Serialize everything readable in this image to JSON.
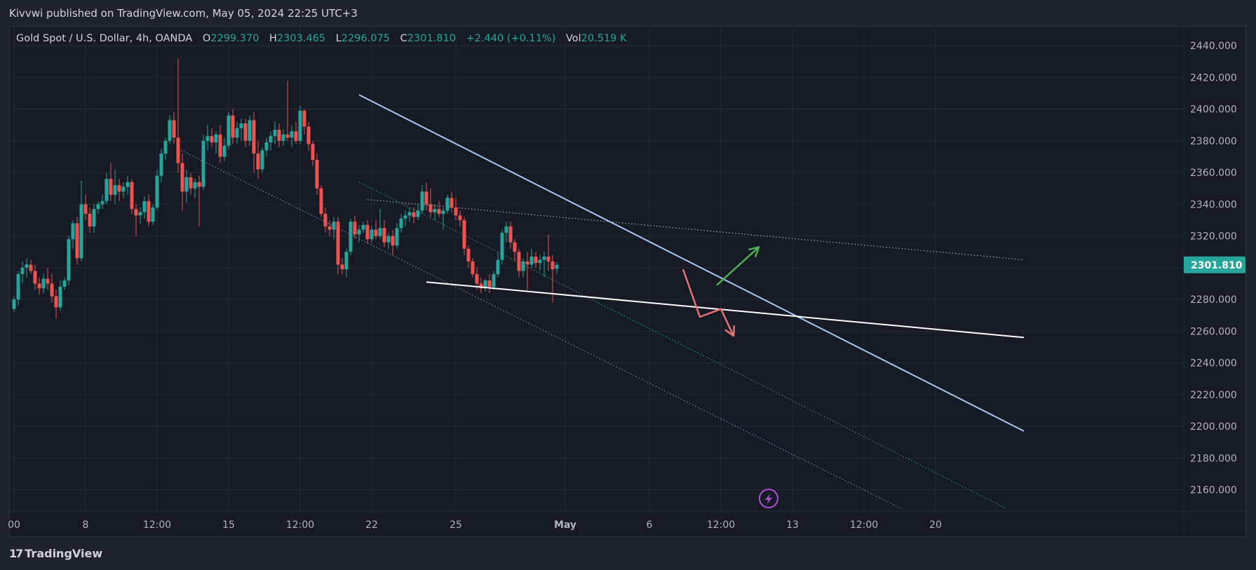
{
  "publisher_line": "Kivvwi published on TradingView.com, May 05, 2024 22:25 UTC+3",
  "legend": {
    "symbol": "Gold Spot / U.S. Dollar, 4h, OANDA",
    "o_label": "O",
    "o_value": "2299.370",
    "h_label": "H",
    "h_value": "2303.465",
    "l_label": "L",
    "l_value": "2296.075",
    "c_label": "C",
    "c_value": "2301.810",
    "change": "+2.440 (+0.11%)",
    "vol_label": "Vol",
    "vol_value": "20.519 K"
  },
  "footer": {
    "logo_mark": "17",
    "brand": "TradingView"
  },
  "colors": {
    "up": "#26a69a",
    "down": "#ef5350",
    "trend": "#a7c7f2",
    "price_tag": "#26a69a"
  },
  "chart_data": {
    "type": "candlestick",
    "symbol": "XAUUSD",
    "timeframe": "4h",
    "ylim": [
      2147,
      2452
    ],
    "y_ticks": [
      2160,
      2180,
      2200,
      2220,
      2240,
      2260,
      2280,
      2300,
      2320,
      2340,
      2360,
      2380,
      2400,
      2420,
      2440
    ],
    "y_tick_labels": [
      "2160.000",
      "2180.000",
      "2200.000",
      "2220.000",
      "2240.000",
      "2260.000",
      "2280.000",
      "2300.000",
      "2320.000",
      "2340.000",
      "2360.000",
      "2380.000",
      "2400.000",
      "2420.000",
      "2440.000"
    ],
    "x_tick_labels": [
      {
        "bar": 0,
        "label": "00"
      },
      {
        "bar": 17,
        "label": "8"
      },
      {
        "bar": 34,
        "label": "12:00"
      },
      {
        "bar": 51,
        "label": "15"
      },
      {
        "bar": 68,
        "label": "12:00"
      },
      {
        "bar": 85,
        "label": "22"
      },
      {
        "bar": 105,
        "label": "25"
      },
      {
        "bar": 131,
        "label": "May"
      },
      {
        "bar": 151,
        "label": "6"
      },
      {
        "bar": 168,
        "label": "12:00"
      },
      {
        "bar": 185,
        "label": "13"
      },
      {
        "bar": 202,
        "label": "12:00"
      },
      {
        "bar": 219,
        "label": "20"
      }
    ],
    "last_price": 2301.81,
    "last_price_label": "2301.810",
    "candles": [
      {
        "o": 2274,
        "h": 2282,
        "l": 2272,
        "c": 2280
      },
      {
        "o": 2280,
        "h": 2298,
        "l": 2276,
        "c": 2296
      },
      {
        "o": 2296,
        "h": 2304,
        "l": 2290,
        "c": 2300
      },
      {
        "o": 2300,
        "h": 2306,
        "l": 2294,
        "c": 2302
      },
      {
        "o": 2302,
        "h": 2305,
        "l": 2296,
        "c": 2298
      },
      {
        "o": 2298,
        "h": 2302,
        "l": 2286,
        "c": 2290
      },
      {
        "o": 2290,
        "h": 2294,
        "l": 2283,
        "c": 2287
      },
      {
        "o": 2287,
        "h": 2296,
        "l": 2284,
        "c": 2293
      },
      {
        "o": 2293,
        "h": 2300,
        "l": 2286,
        "c": 2290
      },
      {
        "o": 2290,
        "h": 2296,
        "l": 2278,
        "c": 2282
      },
      {
        "o": 2282,
        "h": 2286,
        "l": 2268,
        "c": 2275
      },
      {
        "o": 2275,
        "h": 2292,
        "l": 2273,
        "c": 2288
      },
      {
        "o": 2288,
        "h": 2294,
        "l": 2286,
        "c": 2292
      },
      {
        "o": 2292,
        "h": 2320,
        "l": 2289,
        "c": 2318
      },
      {
        "o": 2318,
        "h": 2330,
        "l": 2312,
        "c": 2328
      },
      {
        "o": 2328,
        "h": 2332,
        "l": 2302,
        "c": 2306
      },
      {
        "o": 2306,
        "h": 2355,
        "l": 2304,
        "c": 2340
      },
      {
        "o": 2340,
        "h": 2346,
        "l": 2330,
        "c": 2334
      },
      {
        "o": 2334,
        "h": 2338,
        "l": 2322,
        "c": 2326
      },
      {
        "o": 2326,
        "h": 2340,
        "l": 2322,
        "c": 2337
      },
      {
        "o": 2337,
        "h": 2342,
        "l": 2334,
        "c": 2340
      },
      {
        "o": 2340,
        "h": 2346,
        "l": 2337,
        "c": 2342
      },
      {
        "o": 2342,
        "h": 2360,
        "l": 2340,
        "c": 2356
      },
      {
        "o": 2356,
        "h": 2366,
        "l": 2342,
        "c": 2346
      },
      {
        "o": 2346,
        "h": 2362,
        "l": 2340,
        "c": 2352
      },
      {
        "o": 2352,
        "h": 2356,
        "l": 2342,
        "c": 2348
      },
      {
        "o": 2348,
        "h": 2354,
        "l": 2344,
        "c": 2351
      },
      {
        "o": 2351,
        "h": 2358,
        "l": 2346,
        "c": 2354
      },
      {
        "o": 2354,
        "h": 2356,
        "l": 2334,
        "c": 2337
      },
      {
        "o": 2337,
        "h": 2340,
        "l": 2320,
        "c": 2333
      },
      {
        "o": 2333,
        "h": 2338,
        "l": 2328,
        "c": 2335
      },
      {
        "o": 2335,
        "h": 2345,
        "l": 2331,
        "c": 2342
      },
      {
        "o": 2342,
        "h": 2346,
        "l": 2326,
        "c": 2329
      },
      {
        "o": 2329,
        "h": 2340,
        "l": 2327,
        "c": 2338
      },
      {
        "o": 2338,
        "h": 2362,
        "l": 2336,
        "c": 2358
      },
      {
        "o": 2358,
        "h": 2375,
        "l": 2354,
        "c": 2372
      },
      {
        "o": 2372,
        "h": 2382,
        "l": 2368,
        "c": 2380
      },
      {
        "o": 2380,
        "h": 2396,
        "l": 2378,
        "c": 2393
      },
      {
        "o": 2393,
        "h": 2398,
        "l": 2378,
        "c": 2382
      },
      {
        "o": 2382,
        "h": 2432,
        "l": 2360,
        "c": 2366
      },
      {
        "o": 2366,
        "h": 2372,
        "l": 2336,
        "c": 2348
      },
      {
        "o": 2348,
        "h": 2362,
        "l": 2341,
        "c": 2357
      },
      {
        "o": 2357,
        "h": 2360,
        "l": 2346,
        "c": 2350
      },
      {
        "o": 2350,
        "h": 2356,
        "l": 2344,
        "c": 2354
      },
      {
        "o": 2354,
        "h": 2358,
        "l": 2326,
        "c": 2351
      },
      {
        "o": 2351,
        "h": 2384,
        "l": 2349,
        "c": 2380
      },
      {
        "o": 2380,
        "h": 2390,
        "l": 2374,
        "c": 2383
      },
      {
        "o": 2383,
        "h": 2388,
        "l": 2376,
        "c": 2379
      },
      {
        "o": 2379,
        "h": 2386,
        "l": 2372,
        "c": 2384
      },
      {
        "o": 2384,
        "h": 2390,
        "l": 2366,
        "c": 2370
      },
      {
        "o": 2370,
        "h": 2382,
        "l": 2367,
        "c": 2377
      },
      {
        "o": 2377,
        "h": 2398,
        "l": 2375,
        "c": 2396
      },
      {
        "o": 2396,
        "h": 2400,
        "l": 2378,
        "c": 2382
      },
      {
        "o": 2382,
        "h": 2392,
        "l": 2378,
        "c": 2388
      },
      {
        "o": 2388,
        "h": 2394,
        "l": 2380,
        "c": 2391
      },
      {
        "o": 2391,
        "h": 2394,
        "l": 2376,
        "c": 2380
      },
      {
        "o": 2380,
        "h": 2396,
        "l": 2377,
        "c": 2393
      },
      {
        "o": 2393,
        "h": 2398,
        "l": 2360,
        "c": 2372
      },
      {
        "o": 2372,
        "h": 2380,
        "l": 2356,
        "c": 2362
      },
      {
        "o": 2362,
        "h": 2376,
        "l": 2360,
        "c": 2374
      },
      {
        "o": 2374,
        "h": 2382,
        "l": 2370,
        "c": 2379
      },
      {
        "o": 2379,
        "h": 2386,
        "l": 2374,
        "c": 2383
      },
      {
        "o": 2383,
        "h": 2392,
        "l": 2378,
        "c": 2387
      },
      {
        "o": 2387,
        "h": 2391,
        "l": 2376,
        "c": 2380
      },
      {
        "o": 2380,
        "h": 2387,
        "l": 2377,
        "c": 2384
      },
      {
        "o": 2384,
        "h": 2418,
        "l": 2380,
        "c": 2382
      },
      {
        "o": 2382,
        "h": 2390,
        "l": 2376,
        "c": 2386
      },
      {
        "o": 2386,
        "h": 2392,
        "l": 2378,
        "c": 2380
      },
      {
        "o": 2380,
        "h": 2402,
        "l": 2378,
        "c": 2399
      },
      {
        "o": 2399,
        "h": 2400,
        "l": 2384,
        "c": 2389
      },
      {
        "o": 2389,
        "h": 2392,
        "l": 2374,
        "c": 2378
      },
      {
        "o": 2378,
        "h": 2380,
        "l": 2364,
        "c": 2368
      },
      {
        "o": 2368,
        "h": 2372,
        "l": 2346,
        "c": 2350
      },
      {
        "o": 2350,
        "h": 2352,
        "l": 2332,
        "c": 2334
      },
      {
        "o": 2334,
        "h": 2338,
        "l": 2322,
        "c": 2326
      },
      {
        "o": 2326,
        "h": 2330,
        "l": 2320,
        "c": 2324
      },
      {
        "o": 2324,
        "h": 2332,
        "l": 2318,
        "c": 2329
      },
      {
        "o": 2329,
        "h": 2332,
        "l": 2296,
        "c": 2302
      },
      {
        "o": 2302,
        "h": 2306,
        "l": 2296,
        "c": 2299
      },
      {
        "o": 2299,
        "h": 2312,
        "l": 2294,
        "c": 2310
      },
      {
        "o": 2310,
        "h": 2331,
        "l": 2308,
        "c": 2329
      },
      {
        "o": 2329,
        "h": 2333,
        "l": 2318,
        "c": 2321
      },
      {
        "o": 2321,
        "h": 2327,
        "l": 2316,
        "c": 2324
      },
      {
        "o": 2324,
        "h": 2329,
        "l": 2322,
        "c": 2327
      },
      {
        "o": 2327,
        "h": 2330,
        "l": 2315,
        "c": 2318
      },
      {
        "o": 2318,
        "h": 2326,
        "l": 2316,
        "c": 2324
      },
      {
        "o": 2324,
        "h": 2330,
        "l": 2318,
        "c": 2320
      },
      {
        "o": 2320,
        "h": 2337,
        "l": 2318,
        "c": 2325
      },
      {
        "o": 2325,
        "h": 2330,
        "l": 2313,
        "c": 2316
      },
      {
        "o": 2316,
        "h": 2322,
        "l": 2312,
        "c": 2320
      },
      {
        "o": 2320,
        "h": 2324,
        "l": 2308,
        "c": 2314
      },
      {
        "o": 2314,
        "h": 2328,
        "l": 2312,
        "c": 2325
      },
      {
        "o": 2325,
        "h": 2334,
        "l": 2322,
        "c": 2331
      },
      {
        "o": 2331,
        "h": 2336,
        "l": 2326,
        "c": 2333
      },
      {
        "o": 2333,
        "h": 2338,
        "l": 2329,
        "c": 2335
      },
      {
        "o": 2335,
        "h": 2338,
        "l": 2328,
        "c": 2332
      },
      {
        "o": 2332,
        "h": 2340,
        "l": 2330,
        "c": 2336
      },
      {
        "o": 2336,
        "h": 2352,
        "l": 2334,
        "c": 2348
      },
      {
        "o": 2348,
        "h": 2354,
        "l": 2336,
        "c": 2340
      },
      {
        "o": 2340,
        "h": 2350,
        "l": 2332,
        "c": 2335
      },
      {
        "o": 2335,
        "h": 2340,
        "l": 2330,
        "c": 2337
      },
      {
        "o": 2337,
        "h": 2342,
        "l": 2332,
        "c": 2334
      },
      {
        "o": 2334,
        "h": 2338,
        "l": 2324,
        "c": 2336
      },
      {
        "o": 2336,
        "h": 2346,
        "l": 2334,
        "c": 2344
      },
      {
        "o": 2344,
        "h": 2348,
        "l": 2335,
        "c": 2338
      },
      {
        "o": 2338,
        "h": 2344,
        "l": 2330,
        "c": 2333
      },
      {
        "o": 2333,
        "h": 2336,
        "l": 2326,
        "c": 2330
      },
      {
        "o": 2330,
        "h": 2332,
        "l": 2308,
        "c": 2312
      },
      {
        "o": 2312,
        "h": 2314,
        "l": 2300,
        "c": 2304
      },
      {
        "o": 2304,
        "h": 2306,
        "l": 2294,
        "c": 2296
      },
      {
        "o": 2296,
        "h": 2300,
        "l": 2286,
        "c": 2290
      },
      {
        "o": 2290,
        "h": 2294,
        "l": 2284,
        "c": 2287
      },
      {
        "o": 2287,
        "h": 2293,
        "l": 2285,
        "c": 2292
      },
      {
        "o": 2292,
        "h": 2296,
        "l": 2284,
        "c": 2288
      },
      {
        "o": 2288,
        "h": 2298,
        "l": 2286,
        "c": 2296
      },
      {
        "o": 2296,
        "h": 2310,
        "l": 2294,
        "c": 2305
      },
      {
        "o": 2305,
        "h": 2324,
        "l": 2302,
        "c": 2322
      },
      {
        "o": 2322,
        "h": 2329,
        "l": 2316,
        "c": 2326
      },
      {
        "o": 2326,
        "h": 2329,
        "l": 2312,
        "c": 2316
      },
      {
        "o": 2316,
        "h": 2318,
        "l": 2304,
        "c": 2310
      },
      {
        "o": 2310,
        "h": 2312,
        "l": 2294,
        "c": 2298
      },
      {
        "o": 2298,
        "h": 2306,
        "l": 2294,
        "c": 2304
      },
      {
        "o": 2304,
        "h": 2310,
        "l": 2286,
        "c": 2302
      },
      {
        "o": 2302,
        "h": 2312,
        "l": 2300,
        "c": 2307
      },
      {
        "o": 2307,
        "h": 2310,
        "l": 2300,
        "c": 2303
      },
      {
        "o": 2303,
        "h": 2308,
        "l": 2298,
        "c": 2305
      },
      {
        "o": 2305,
        "h": 2310,
        "l": 2294,
        "c": 2307
      },
      {
        "o": 2307,
        "h": 2321,
        "l": 2298,
        "c": 2304
      },
      {
        "o": 2304,
        "h": 2308,
        "l": 2278,
        "c": 2299
      },
      {
        "o": 2299.37,
        "h": 2303.465,
        "l": 2296.075,
        "c": 2301.81
      }
    ],
    "drawings": [
      {
        "name": "upper-trendline",
        "style": "solid",
        "color": "#a7c7f2",
        "from": {
          "bar": 82,
          "price": 2409
        },
        "to": {
          "bar": 240,
          "price": 2197
        }
      },
      {
        "name": "lower-support-line",
        "style": "solid",
        "color": "#ffffff",
        "from": {
          "bar": 98,
          "price": 2291
        },
        "to": {
          "bar": 240,
          "price": 2256
        }
      },
      {
        "name": "dotted-resistance-line",
        "style": "dotted",
        "color": "#9aa0ad",
        "from": {
          "bar": 84,
          "price": 2343
        },
        "to": {
          "bar": 240,
          "price": 2305
        }
      },
      {
        "name": "teal-channel-line",
        "style": "dotted",
        "color": "#2e8a86",
        "from": {
          "bar": 82,
          "price": 2354
        },
        "to": {
          "bar": 236,
          "price": 2148
        }
      },
      {
        "name": "lower-channel-line",
        "style": "dotted",
        "color": "#6f7fa8",
        "from": {
          "bar": 39,
          "price": 2375
        },
        "to": {
          "bar": 211,
          "price": 2148
        }
      }
    ],
    "arrows": [
      {
        "name": "bullish-arrow",
        "color": "#4caf50",
        "points": [
          {
            "bar": 167,
            "price": 2289
          },
          {
            "bar": 177,
            "price": 2313
          }
        ]
      },
      {
        "name": "bearish-arrow",
        "color": "#e57373",
        "points": [
          {
            "bar": 159,
            "price": 2299
          },
          {
            "bar": 163,
            "price": 2269
          },
          {
            "bar": 168,
            "price": 2274
          },
          {
            "bar": 171,
            "price": 2257
          }
        ]
      }
    ]
  }
}
